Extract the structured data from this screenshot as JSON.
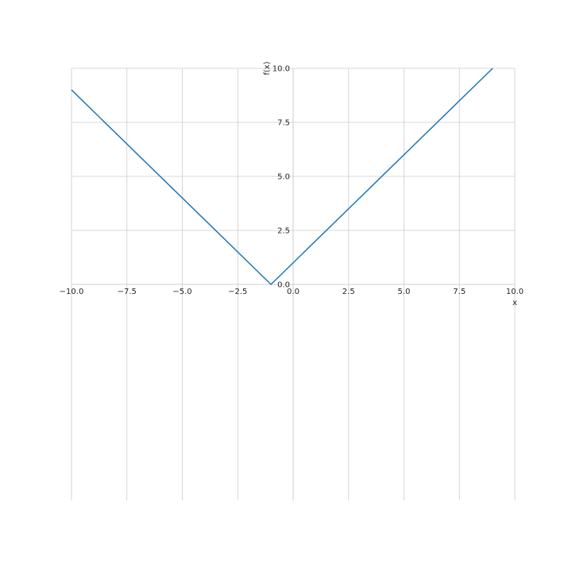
{
  "chart_data": {
    "type": "line",
    "xlabel": "x",
    "ylabel": "f(x)",
    "xlim": [
      -10,
      10
    ],
    "ylim": [
      0,
      10
    ],
    "grid": true,
    "x_ticks": [
      -10.0,
      -7.5,
      -5.0,
      -2.5,
      0.0,
      2.5,
      5.0,
      7.5,
      10.0
    ],
    "x_tick_labels": [
      "−10.0",
      "−7.5",
      "−5.0",
      "−2.5",
      "0.0",
      "2.5",
      "5.0",
      "7.5",
      "10.0"
    ],
    "y_ticks": [
      0.0,
      2.5,
      5.0,
      7.5,
      10.0
    ],
    "y_tick_labels": [
      "0.0",
      "2.5",
      "5.0",
      "7.5",
      "10.0"
    ],
    "series": [
      {
        "color": "#1f77b4",
        "x": [
          -10,
          -1,
          9
        ],
        "y": [
          9,
          0,
          10
        ]
      }
    ]
  }
}
